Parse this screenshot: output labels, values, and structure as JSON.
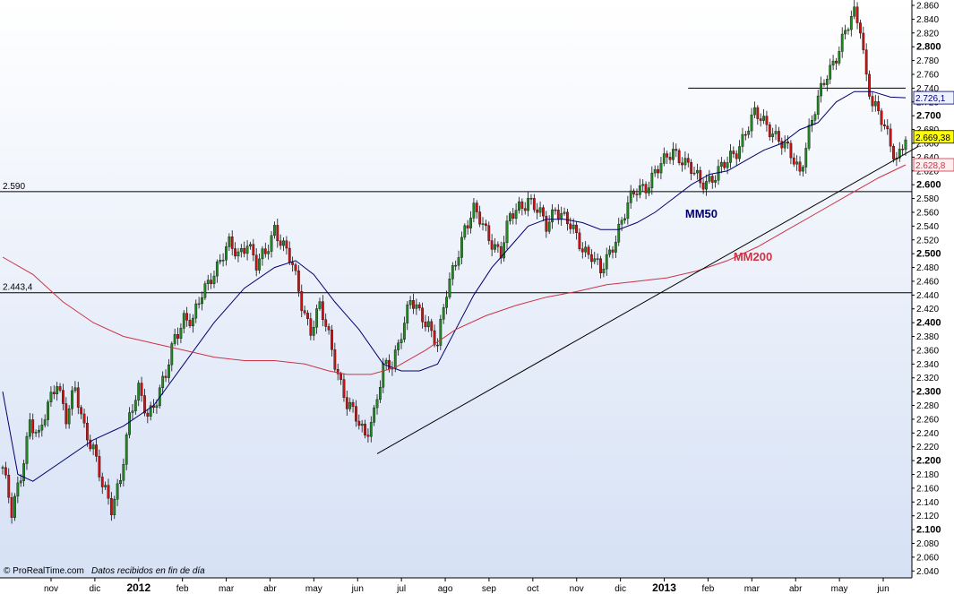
{
  "chart_data": {
    "type": "candlestick",
    "xlabel": "",
    "ylabel": "",
    "ylim": [
      2030,
      2860
    ],
    "y_ticks": [
      2040,
      2060,
      2080,
      2100,
      2120,
      2140,
      2160,
      2180,
      2200,
      2220,
      2240,
      2260,
      2280,
      2300,
      2320,
      2340,
      2360,
      2380,
      2400,
      2420,
      2440,
      2460,
      2480,
      2500,
      2520,
      2540,
      2560,
      2580,
      2600,
      2620,
      2640,
      2660,
      2680,
      2700,
      2720,
      2740,
      2760,
      2780,
      2800,
      2820,
      2840,
      2860
    ],
    "y_tick_labels": [
      "2.040",
      "2.060",
      "2.080",
      "2.100",
      "2.120",
      "2.140",
      "2.160",
      "2.180",
      "2.200",
      "2.220",
      "2.240",
      "2.260",
      "2.280",
      "2.300",
      "2.320",
      "2.340",
      "2.360",
      "2.380",
      "2.400",
      "2.420",
      "2.440",
      "2.460",
      "2.480",
      "2.500",
      "2.520",
      "2.540",
      "2.560",
      "2.580",
      "2.600",
      "2.620",
      "2.640",
      "2.660",
      "2.680",
      "2.700",
      "2.720",
      "2.740",
      "2.760",
      "2.780",
      "2.800",
      "2.820",
      "2.840",
      "2.860"
    ],
    "y_major_ticks": [
      2100,
      2200,
      2300,
      2400,
      2500,
      2600,
      2700,
      2800
    ],
    "x_labels": [
      "nov",
      "dic",
      "2012",
      "feb",
      "mar",
      "abr",
      "may",
      "jun",
      "jul",
      "ago",
      "sep",
      "oct",
      "nov",
      "dic",
      "2013",
      "feb",
      "mar",
      "abr",
      "may",
      "jun"
    ],
    "x_bold_labels": [
      "2012",
      "2013"
    ],
    "price_path": [
      [
        0,
        2190
      ],
      [
        3,
        2120
      ],
      [
        6,
        2180
      ],
      [
        9,
        2260
      ],
      [
        12,
        2230
      ],
      [
        15,
        2280
      ],
      [
        18,
        2320
      ],
      [
        21,
        2260
      ],
      [
        24,
        2300
      ],
      [
        27,
        2250
      ],
      [
        30,
        2220
      ],
      [
        33,
        2160
      ],
      [
        36,
        2130
      ],
      [
        39,
        2180
      ],
      [
        42,
        2260
      ],
      [
        45,
        2300
      ],
      [
        48,
        2270
      ],
      [
        51,
        2290
      ],
      [
        54,
        2320
      ],
      [
        57,
        2380
      ],
      [
        60,
        2410
      ],
      [
        63,
        2400
      ],
      [
        66,
        2440
      ],
      [
        69,
        2470
      ],
      [
        72,
        2490
      ],
      [
        75,
        2510
      ],
      [
        78,
        2500
      ],
      [
        81,
        2520
      ],
      [
        84,
        2480
      ],
      [
        87,
        2500
      ],
      [
        90,
        2540
      ],
      [
        93,
        2510
      ],
      [
        96,
        2480
      ],
      [
        99,
        2430
      ],
      [
        102,
        2390
      ],
      [
        105,
        2420
      ],
      [
        108,
        2380
      ],
      [
        111,
        2330
      ],
      [
        114,
        2280
      ],
      [
        117,
        2260
      ],
      [
        120,
        2240
      ],
      [
        123,
        2270
      ],
      [
        126,
        2330
      ],
      [
        129,
        2340
      ],
      [
        132,
        2390
      ],
      [
        135,
        2430
      ],
      [
        138,
        2410
      ],
      [
        141,
        2400
      ],
      [
        144,
        2370
      ],
      [
        147,
        2440
      ],
      [
        150,
        2490
      ],
      [
        153,
        2540
      ],
      [
        156,
        2560
      ],
      [
        159,
        2540
      ],
      [
        162,
        2520
      ],
      [
        165,
        2500
      ],
      [
        168,
        2550
      ],
      [
        171,
        2570
      ],
      [
        174,
        2580
      ],
      [
        177,
        2560
      ],
      [
        180,
        2540
      ],
      [
        183,
        2570
      ],
      [
        186,
        2550
      ],
      [
        189,
        2530
      ],
      [
        192,
        2510
      ],
      [
        195,
        2500
      ],
      [
        198,
        2470
      ],
      [
        201,
        2500
      ],
      [
        204,
        2540
      ],
      [
        207,
        2570
      ],
      [
        210,
        2590
      ],
      [
        213,
        2600
      ],
      [
        216,
        2620
      ],
      [
        219,
        2630
      ],
      [
        222,
        2650
      ],
      [
        225,
        2640
      ],
      [
        228,
        2620
      ],
      [
        231,
        2600
      ],
      [
        234,
        2610
      ],
      [
        237,
        2620
      ],
      [
        240,
        2630
      ],
      [
        243,
        2650
      ],
      [
        246,
        2680
      ],
      [
        249,
        2700
      ],
      [
        252,
        2690
      ],
      [
        255,
        2680
      ],
      [
        258,
        2660
      ],
      [
        261,
        2640
      ],
      [
        264,
        2620
      ],
      [
        267,
        2680
      ],
      [
        270,
        2720
      ],
      [
        273,
        2760
      ],
      [
        276,
        2790
      ],
      [
        279,
        2820
      ],
      [
        282,
        2845
      ],
      [
        284,
        2830
      ],
      [
        286,
        2760
      ],
      [
        288,
        2720
      ],
      [
        290,
        2700
      ],
      [
        292,
        2680
      ],
      [
        294,
        2660
      ],
      [
        296,
        2640
      ],
      [
        298,
        2660
      ],
      [
        299,
        2669.38
      ]
    ],
    "series": [
      {
        "name": "MM50",
        "color": "#00006e",
        "points": [
          [
            0,
            2300
          ],
          [
            5,
            2180
          ],
          [
            10,
            2170
          ],
          [
            20,
            2200
          ],
          [
            30,
            2230
          ],
          [
            40,
            2250
          ],
          [
            50,
            2280
          ],
          [
            60,
            2340
          ],
          [
            70,
            2400
          ],
          [
            80,
            2450
          ],
          [
            90,
            2480
          ],
          [
            97,
            2490
          ],
          [
            103,
            2470
          ],
          [
            110,
            2430
          ],
          [
            118,
            2390
          ],
          [
            126,
            2340
          ],
          [
            132,
            2330
          ],
          [
            138,
            2330
          ],
          [
            144,
            2340
          ],
          [
            150,
            2390
          ],
          [
            156,
            2440
          ],
          [
            162,
            2480
          ],
          [
            168,
            2510
          ],
          [
            174,
            2540
          ],
          [
            180,
            2550
          ],
          [
            186,
            2550
          ],
          [
            192,
            2545
          ],
          [
            198,
            2535
          ],
          [
            204,
            2535
          ],
          [
            210,
            2545
          ],
          [
            216,
            2560
          ],
          [
            222,
            2580
          ],
          [
            228,
            2600
          ],
          [
            234,
            2615
          ],
          [
            240,
            2620
          ],
          [
            246,
            2635
          ],
          [
            252,
            2650
          ],
          [
            258,
            2660
          ],
          [
            264,
            2680
          ],
          [
            270,
            2690
          ],
          [
            276,
            2720
          ],
          [
            282,
            2735
          ],
          [
            288,
            2735
          ],
          [
            294,
            2727
          ],
          [
            299,
            2726.1
          ]
        ]
      },
      {
        "name": "MM200",
        "color": "#cc3344",
        "points": [
          [
            0,
            2495
          ],
          [
            10,
            2470
          ],
          [
            20,
            2430
          ],
          [
            30,
            2400
          ],
          [
            40,
            2380
          ],
          [
            50,
            2370
          ],
          [
            60,
            2360
          ],
          [
            70,
            2350
          ],
          [
            80,
            2345
          ],
          [
            90,
            2345
          ],
          [
            100,
            2340
          ],
          [
            108,
            2330
          ],
          [
            114,
            2325
          ],
          [
            122,
            2325
          ],
          [
            130,
            2335
          ],
          [
            140,
            2360
          ],
          [
            150,
            2390
          ],
          [
            160,
            2410
          ],
          [
            170,
            2425
          ],
          [
            180,
            2437
          ],
          [
            190,
            2445
          ],
          [
            200,
            2455
          ],
          [
            210,
            2460
          ],
          [
            220,
            2465
          ],
          [
            230,
            2475
          ],
          [
            240,
            2490
          ],
          [
            250,
            2510
          ],
          [
            260,
            2535
          ],
          [
            270,
            2560
          ],
          [
            280,
            2585
          ],
          [
            290,
            2610
          ],
          [
            299,
            2628.8
          ]
        ]
      }
    ],
    "lines": [
      {
        "name": "support-2590",
        "label": "2.590",
        "value": 2590
      },
      {
        "name": "support-2443",
        "label": "2.443,4",
        "value": 2443.4
      },
      {
        "name": "resistance-2740",
        "label": "",
        "value": 2740
      }
    ],
    "trendline": {
      "from": [
        124,
        2210
      ],
      "to": [
        299,
        2645
      ]
    },
    "value_badges": [
      {
        "name": "mm50-value",
        "label": "2.726,1",
        "value": 2726.1,
        "color": "#00006e",
        "bg": "#eef2ff"
      },
      {
        "name": "price-value",
        "label": "2.669,38",
        "value": 2669.38,
        "color": "#000000",
        "bg": "#ffff00"
      },
      {
        "name": "mm200-value",
        "label": "2.628,8",
        "value": 2628.8,
        "color": "#cc3344",
        "bg": "#ffeef0"
      }
    ],
    "annotations": [
      {
        "name": "mm50-label",
        "text": "MM50",
        "color": "#00006e",
        "x": 226,
        "y": 2552
      },
      {
        "name": "mm200-label",
        "text": "MM200",
        "color": "#cc3344",
        "x": 242,
        "y": 2490
      }
    ]
  },
  "footer": {
    "brand": "© ProRealTime.com",
    "note": "Datos recibidos en fin de día"
  }
}
